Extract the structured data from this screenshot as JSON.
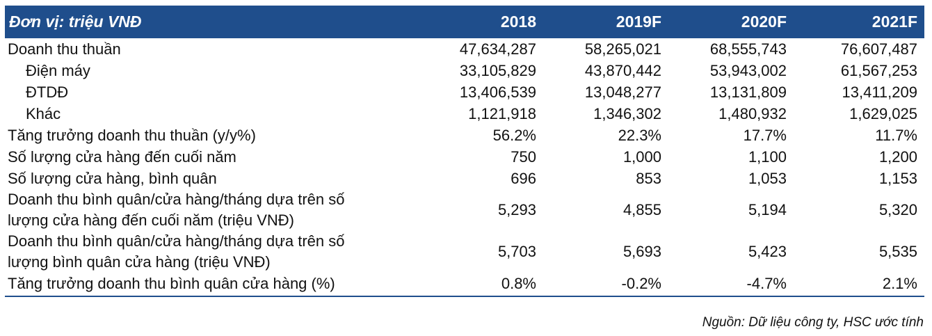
{
  "header": {
    "unit_label": "Đơn vị: triệu VNĐ",
    "years": [
      "2018",
      "2019F",
      "2020F",
      "2021F"
    ]
  },
  "rows": [
    {
      "label": "Doanh thu thuần",
      "values": [
        "47,634,287",
        "58,265,021",
        "68,555,743",
        "76,607,487"
      ]
    },
    {
      "label": "Điện máy",
      "values": [
        "33,105,829",
        "43,870,442",
        "53,943,002",
        "61,567,253"
      ]
    },
    {
      "label": "ĐTDĐ",
      "values": [
        "13,406,539",
        "13,048,277",
        "13,131,809",
        "13,411,209"
      ]
    },
    {
      "label": "Khác",
      "values": [
        "1,121,918",
        "1,346,302",
        "1,480,932",
        "1,629,025"
      ]
    },
    {
      "label": "Tăng trưởng doanh thu thuần (y/y%)",
      "values": [
        "56.2%",
        "22.3%",
        "17.7%",
        "11.7%"
      ]
    },
    {
      "label": "Số lượng cửa hàng đến cuối năm",
      "values": [
        "750",
        "1,000",
        "1,100",
        "1,200"
      ]
    },
    {
      "label": "Số lượng cửa hàng, bình quân",
      "values": [
        "696",
        "853",
        "1,053",
        "1,153"
      ]
    },
    {
      "label_line1": "Doanh thu bình quân/cửa hàng/tháng dựa trên số",
      "label_line2": "lượng cửa hàng đến cuối năm (triệu VNĐ)",
      "values": [
        "5,293",
        "4,855",
        "5,194",
        "5,320"
      ]
    },
    {
      "label_line1": "Doanh thu bình quân/cửa hàng/tháng dựa trên số",
      "label_line2": "lượng bình quân cửa hàng  (triệu VNĐ)",
      "values": [
        "5,703",
        "5,693",
        "5,423",
        "5,535"
      ]
    },
    {
      "label": "Tăng trưởng doanh thu bình quân cửa hàng (%)",
      "values": [
        "0.8%",
        "-0.2%",
        "-4.7%",
        "2.1%"
      ]
    }
  ],
  "source": "Nguồn: Dữ liệu công ty, HSC ước tính",
  "colors": {
    "header_bg": "#1F4E8C",
    "header_text": "#FFFFFF"
  }
}
